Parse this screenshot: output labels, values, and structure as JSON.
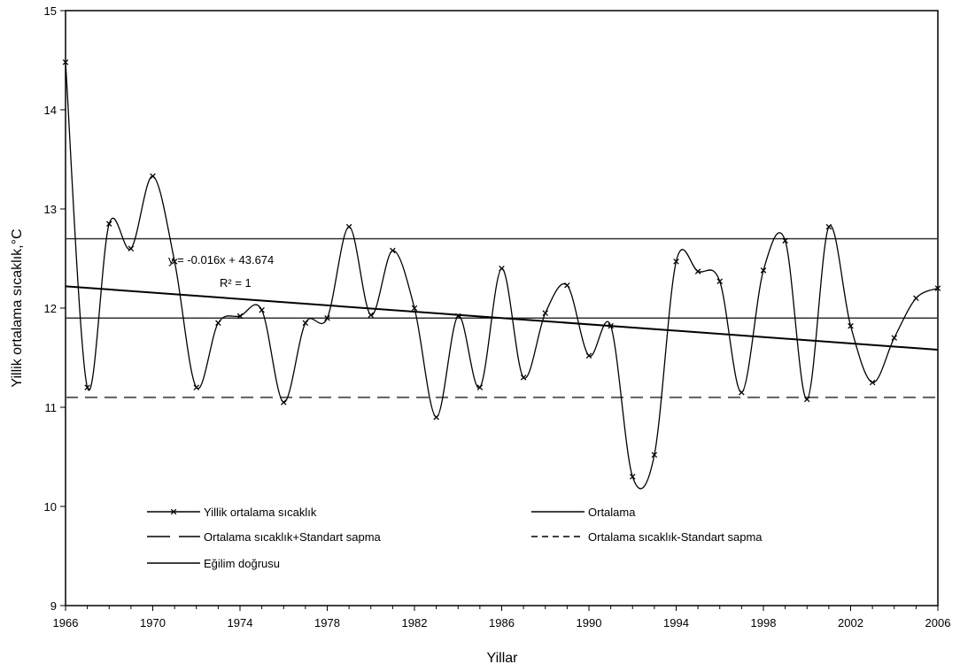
{
  "chart_data": {
    "type": "line",
    "xlabel": "Yillar",
    "ylabel": "Yillik ortalama sıcaklık,°C",
    "xlim": [
      1966,
      2006
    ],
    "ylim": [
      9,
      15
    ],
    "xticks": [
      "1966",
      "1970",
      "1974",
      "1978",
      "1982",
      "1986",
      "1990",
      "1994",
      "1998",
      "2002",
      "2006"
    ],
    "yticks": [
      "9",
      "10",
      "11",
      "12",
      "13",
      "14",
      "15"
    ],
    "grid": false,
    "legend_position": "bottom-left inside plot",
    "series": [
      {
        "name": "Yillik ortalama sıcaklık",
        "style": "line-with-x-markers",
        "x": [
          1966,
          1967,
          1968,
          1969,
          1970,
          1971,
          1972,
          1973,
          1974,
          1975,
          1976,
          1977,
          1978,
          1979,
          1980,
          1981,
          1982,
          1983,
          1984,
          1985,
          1986,
          1987,
          1988,
          1989,
          1990,
          1991,
          1992,
          1993,
          1994,
          1995,
          1996,
          1997,
          1998,
          1999,
          2000,
          2001,
          2002,
          2003,
          2004,
          2005,
          2006
        ],
        "values": [
          14.48,
          11.2,
          12.85,
          12.6,
          13.33,
          12.47,
          11.2,
          11.85,
          11.92,
          11.98,
          11.05,
          11.85,
          11.9,
          12.82,
          11.93,
          12.58,
          12.0,
          10.9,
          11.92,
          11.2,
          12.4,
          11.3,
          11.95,
          12.23,
          11.52,
          11.82,
          10.3,
          10.52,
          12.47,
          12.37,
          12.27,
          11.15,
          12.38,
          12.68,
          11.08,
          12.82,
          11.82,
          11.25,
          11.7,
          12.1,
          12.2
        ]
      },
      {
        "name": "Ortalama",
        "style": "solid-horizontal",
        "value": 11.9
      },
      {
        "name": "Ortalama sıcaklık+Standart sapma",
        "style": "solid-horizontal",
        "value": 12.7
      },
      {
        "name": "Ortalama sıcaklık-Standart sapma",
        "style": "dashed-horizontal",
        "value": 11.1
      },
      {
        "name": "Eğilim doğrusu",
        "style": "solid-trend",
        "x": [
          1966,
          2006
        ],
        "values": [
          12.22,
          11.58
        ]
      }
    ],
    "legend": [
      {
        "label": "Yillik ortalama sıcaklık",
        "style": "line-x"
      },
      {
        "label": "Ortalama",
        "style": "solid"
      },
      {
        "label": "Ortalama sıcaklık+Standart sapma",
        "style": "long-dash"
      },
      {
        "label": "Ortalama sıcaklık-Standart sapma",
        "style": "short-dash"
      },
      {
        "label": "Eğilim doğrusu",
        "style": "solid"
      }
    ],
    "annotations": {
      "equation": "y = -0.016x + 43.674",
      "r2": "R² = 1"
    },
    "colors": {
      "line": "#000000",
      "background": "#ffffff",
      "reference_line": "#333333"
    }
  }
}
